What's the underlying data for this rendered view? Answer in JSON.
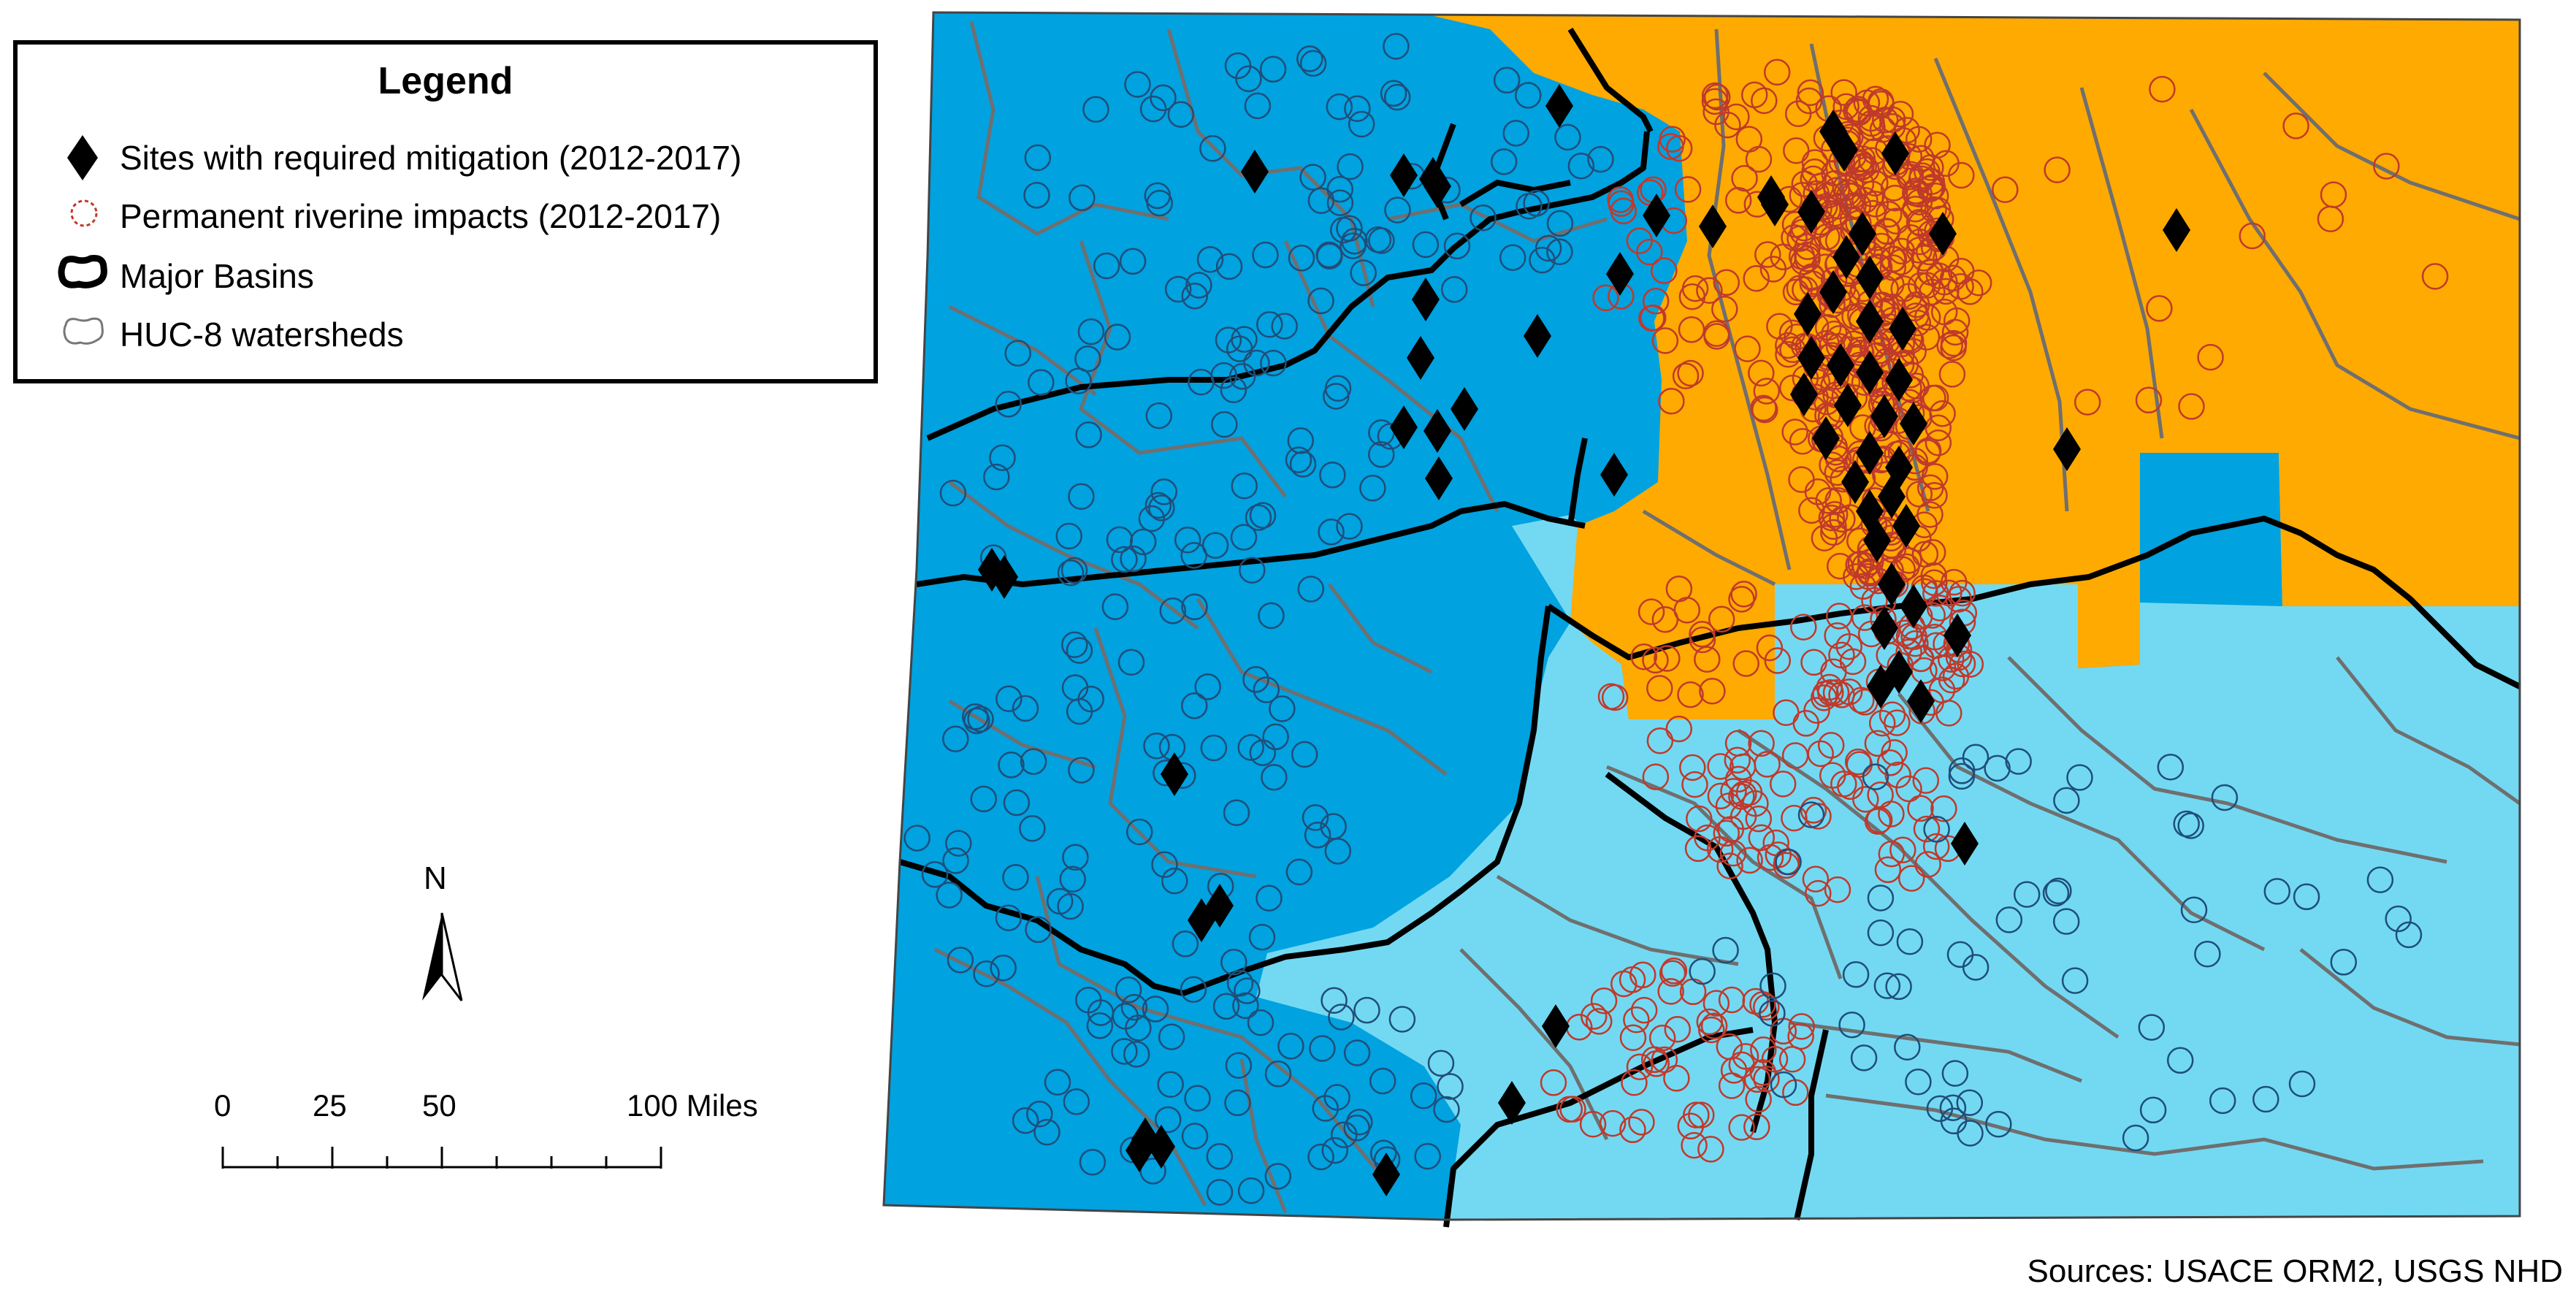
{
  "legend": {
    "title": "Legend",
    "items": [
      {
        "label": "Sites with required mitigation (2012-2017)",
        "icon": "black-diamond"
      },
      {
        "label": "Permanent riverine impacts (2012-2017)",
        "icon": "red-dashed-circle"
      },
      {
        "label": "Major Basins",
        "icon": "thick-black-outline"
      },
      {
        "label": "HUC-8 watersheds",
        "icon": "thin-gray-outline"
      }
    ]
  },
  "north_arrow": {
    "label": "N"
  },
  "scale_bar": {
    "ticks": [
      "0",
      "25",
      "50",
      "100 Miles"
    ]
  },
  "sources": "Sources: USACE ORM2, USGS NHD",
  "colors": {
    "west_basin": "#00a2e0",
    "north_east_basin": "#ffaa00",
    "south_east_basin": "#73d9f2",
    "major_basin_line": "#000000",
    "huc8_line": "#6f6f6f",
    "impact_circles": "#c0392b",
    "blue_circles": "#1f4e79"
  }
}
